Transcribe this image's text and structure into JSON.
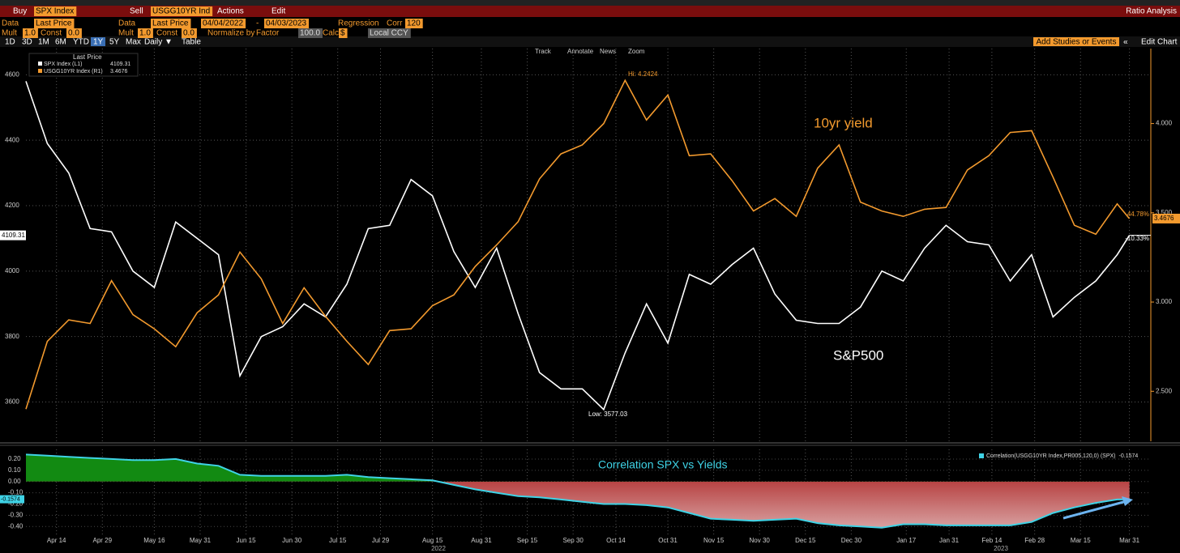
{
  "toolbar": {
    "row1": [
      "Buy",
      "SPX Index",
      "Sell",
      "USGG10YR Ind",
      "Actions",
      "Edit"
    ],
    "title": "Ratio Analysis",
    "row2": [
      "Data",
      "Last Price",
      "Data",
      "Last Price",
      "04/04/2022",
      "-",
      "04/03/2023",
      "Regression",
      "Corr",
      "120"
    ],
    "row3": [
      "Mult",
      "1.0",
      "Const",
      "0.0",
      "Mult",
      "1.0",
      "Const",
      "0.0",
      "Normalize by",
      "Factor",
      "100.0",
      "Calc",
      "$",
      "Local CCY"
    ],
    "periods": [
      "1D",
      "3D",
      "1M",
      "6M",
      "YTD",
      "1Y",
      "5Y",
      "Max",
      "Daily ▼",
      "Table"
    ],
    "studies": "Add Studies or Events",
    "edit_chart": "Edit Chart",
    "tools": [
      "Track",
      "Annotate",
      "News",
      "Zoom"
    ]
  },
  "chart_data": [
    {
      "type": "line",
      "x": [
        "2022-04-04",
        "2022-04-11",
        "2022-04-18",
        "2022-04-25",
        "2022-05-02",
        "2022-05-09",
        "2022-05-16",
        "2022-05-23",
        "2022-05-30",
        "2022-06-06",
        "2022-06-13",
        "2022-06-20",
        "2022-06-27",
        "2022-07-04",
        "2022-07-11",
        "2022-07-18",
        "2022-07-25",
        "2022-08-01",
        "2022-08-08",
        "2022-08-15",
        "2022-08-22",
        "2022-08-29",
        "2022-09-05",
        "2022-09-12",
        "2022-09-19",
        "2022-09-26",
        "2022-10-03",
        "2022-10-10",
        "2022-10-17",
        "2022-10-24",
        "2022-10-31",
        "2022-11-07",
        "2022-11-14",
        "2022-11-21",
        "2022-11-28",
        "2022-12-05",
        "2022-12-12",
        "2022-12-19",
        "2022-12-26",
        "2023-01-02",
        "2023-01-09",
        "2023-01-16",
        "2023-01-23",
        "2023-01-30",
        "2023-02-06",
        "2023-02-13",
        "2023-02-20",
        "2023-02-27",
        "2023-03-06",
        "2023-03-13",
        "2023-03-20",
        "2023-03-27",
        "2023-03-31"
      ],
      "series": [
        {
          "name": "SPX Index (L1)",
          "color": "#ffffff",
          "values": [
            4580,
            4390,
            4300,
            4130,
            4120,
            4000,
            3950,
            4150,
            4100,
            4050,
            3680,
            3800,
            3830,
            3900,
            3860,
            3960,
            4130,
            4140,
            4280,
            4230,
            4060,
            3950,
            4070,
            3870,
            3690,
            3640,
            3640,
            3577.03,
            3750,
            3900,
            3780,
            3990,
            3960,
            4020,
            4070,
            3930,
            3850,
            3840,
            3840,
            3890,
            4000,
            3970,
            4070,
            4140,
            4090,
            4080,
            3970,
            4050,
            3860,
            3920,
            3970,
            4050,
            4109.31
          ]
        },
        {
          "name": "USGG10YR Index (R1)",
          "color": "#f39a2e",
          "axis": "y2",
          "values": [
            2.4,
            2.78,
            2.9,
            2.88,
            3.12,
            2.93,
            2.85,
            2.75,
            2.94,
            3.04,
            3.28,
            3.13,
            2.88,
            3.08,
            2.92,
            2.78,
            2.65,
            2.84,
            2.85,
            2.98,
            3.04,
            3.2,
            3.32,
            3.45,
            3.69,
            3.83,
            3.88,
            4.0,
            4.2424,
            4.02,
            4.16,
            3.82,
            3.83,
            3.68,
            3.51,
            3.58,
            3.48,
            3.75,
            3.88,
            3.56,
            3.51,
            3.48,
            3.52,
            3.53,
            3.74,
            3.82,
            3.95,
            3.96,
            3.7,
            3.43,
            3.38,
            3.55,
            3.4676
          ]
        }
      ],
      "xlim": [
        "2022-04-04",
        "2023-04-07"
      ],
      "ylim": [
        3480,
        4680
      ],
      "yticks": [
        3600,
        3800,
        4000,
        4200,
        4400,
        4600
      ],
      "y2lim": [
        2.22,
        4.42
      ],
      "y2ticks": [
        {
          "value": 2.5,
          "label": "2.500"
        },
        {
          "value": 3,
          "label": "3.000"
        },
        {
          "value": 3.5,
          "label": "3.500"
        },
        {
          "value": 4,
          "label": "4.000"
        }
      ],
      "grid": true,
      "legend_title": "Last Price",
      "annotations": {
        "yield_label": "10yr yield",
        "spx_label": "S&P500",
        "high": "Hi: 4.2424",
        "low": "Low: 3577.03",
        "yield_change": "44.78%",
        "spx_change": "-10.33%"
      }
    },
    {
      "type": "area",
      "x": [
        "2022-04-04",
        "2022-04-11",
        "2022-04-18",
        "2022-04-25",
        "2022-05-02",
        "2022-05-09",
        "2022-05-16",
        "2022-05-23",
        "2022-05-30",
        "2022-06-06",
        "2022-06-13",
        "2022-06-20",
        "2022-06-27",
        "2022-07-04",
        "2022-07-11",
        "2022-07-18",
        "2022-07-25",
        "2022-08-01",
        "2022-08-08",
        "2022-08-15",
        "2022-08-22",
        "2022-08-29",
        "2022-09-05",
        "2022-09-12",
        "2022-09-19",
        "2022-09-26",
        "2022-10-03",
        "2022-10-10",
        "2022-10-17",
        "2022-10-24",
        "2022-10-31",
        "2022-11-07",
        "2022-11-14",
        "2022-11-21",
        "2022-11-28",
        "2022-12-05",
        "2022-12-12",
        "2022-12-19",
        "2022-12-26",
        "2023-01-02",
        "2023-01-09",
        "2023-01-16",
        "2023-01-23",
        "2023-01-30",
        "2023-02-06",
        "2023-02-13",
        "2023-02-20",
        "2023-02-27",
        "2023-03-06",
        "2023-03-13",
        "2023-03-20",
        "2023-03-27",
        "2023-03-31"
      ],
      "series": [
        {
          "name": "Correlation(USGG10YR Index,PR005,120,0) (SPX)",
          "color": "#3fd3e6",
          "values": [
            0.24,
            0.23,
            0.22,
            0.21,
            0.2,
            0.19,
            0.19,
            0.2,
            0.16,
            0.14,
            0.06,
            0.05,
            0.05,
            0.05,
            0.05,
            0.06,
            0.04,
            0.03,
            0.02,
            0.01,
            -0.03,
            -0.07,
            -0.1,
            -0.13,
            -0.14,
            -0.16,
            -0.18,
            -0.2,
            -0.2,
            -0.21,
            -0.23,
            -0.28,
            -0.33,
            -0.34,
            -0.35,
            -0.34,
            -0.33,
            -0.37,
            -0.39,
            -0.4,
            -0.41,
            -0.38,
            -0.38,
            -0.39,
            -0.39,
            -0.39,
            -0.39,
            -0.36,
            -0.28,
            -0.23,
            -0.19,
            -0.16,
            -0.1574
          ]
        }
      ],
      "xlim": [
        "2022-04-04",
        "2023-04-07"
      ],
      "ylim": [
        -0.47,
        0.286
      ],
      "yticks": [
        {
          "value": 0.2,
          "label": "0.20"
        },
        {
          "value": 0.1,
          "label": "0.10"
        },
        {
          "value": 0,
          "label": "0.00"
        },
        {
          "value": -0.1,
          "label": "-0.10"
        },
        {
          "value": -0.2,
          "label": "-0.20"
        },
        {
          "value": -0.3,
          "label": "-0.30"
        },
        {
          "value": -0.4,
          "label": "-0.40"
        }
      ],
      "xticks": [
        {
          "value": "2022-04-14",
          "label": "Apr 14"
        },
        {
          "value": "2022-04-29",
          "label": "Apr 29"
        },
        {
          "value": "2022-05-16",
          "label": "May 16"
        },
        {
          "value": "2022-05-31",
          "label": "May 31"
        },
        {
          "value": "2022-06-15",
          "label": "Jun 15"
        },
        {
          "value": "2022-06-30",
          "label": "Jun 30"
        },
        {
          "value": "2022-07-15",
          "label": "Jul 15"
        },
        {
          "value": "2022-07-29",
          "label": "Jul 29"
        },
        {
          "value": "2022-08-15",
          "label": "Aug 15"
        },
        {
          "value": "2022-08-31",
          "label": "Aug 31"
        },
        {
          "value": "2022-09-15",
          "label": "Sep 15"
        },
        {
          "value": "2022-09-30",
          "label": "Sep 30"
        },
        {
          "value": "2022-10-14",
          "label": "Oct 14"
        },
        {
          "value": "2022-10-31",
          "label": "Oct 31"
        },
        {
          "value": "2022-11-15",
          "label": "Nov 15"
        },
        {
          "value": "2022-11-30",
          "label": "Nov 30"
        },
        {
          "value": "2022-12-15",
          "label": "Dec 15"
        },
        {
          "value": "2022-12-30",
          "label": "Dec 30"
        },
        {
          "value": "2023-01-17",
          "label": "Jan 17"
        },
        {
          "value": "2023-01-31",
          "label": "Jan 31"
        },
        {
          "value": "2023-02-14",
          "label": "Feb 14"
        },
        {
          "value": "2023-02-28",
          "label": "Feb 28"
        },
        {
          "value": "2023-03-15",
          "label": "Mar 15"
        },
        {
          "value": "2023-03-31",
          "label": "Mar 31"
        }
      ],
      "year_labels": [
        "2022",
        "2023"
      ],
      "annotation": "Correlation SPX vs Yields"
    }
  ]
}
